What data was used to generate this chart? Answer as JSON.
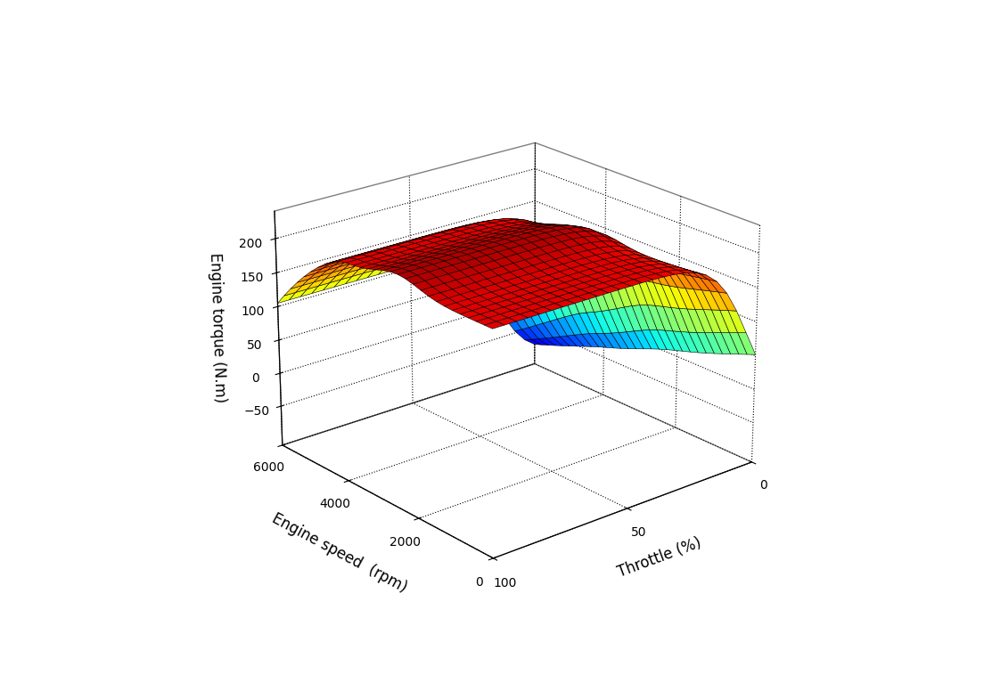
{
  "xlabel": "Throttle (%)",
  "ylabel": "Engine speed  (rpm)",
  "zlabel": "Engine torque (N.m)",
  "throttle_range": [
    0,
    100
  ],
  "rpm_range": [
    0,
    6000
  ],
  "torque_zlim": [
    -110,
    240
  ],
  "z_ticks": [
    -50,
    0,
    50,
    100,
    150,
    200
  ],
  "x_ticks": [
    0,
    50,
    100
  ],
  "y_ticks": [
    0,
    2000,
    4000,
    6000
  ],
  "colormap": "jet",
  "elev": 22,
  "azim": -130,
  "n_throttle": 25,
  "n_rpm": 30,
  "background_color": "#ffffff"
}
